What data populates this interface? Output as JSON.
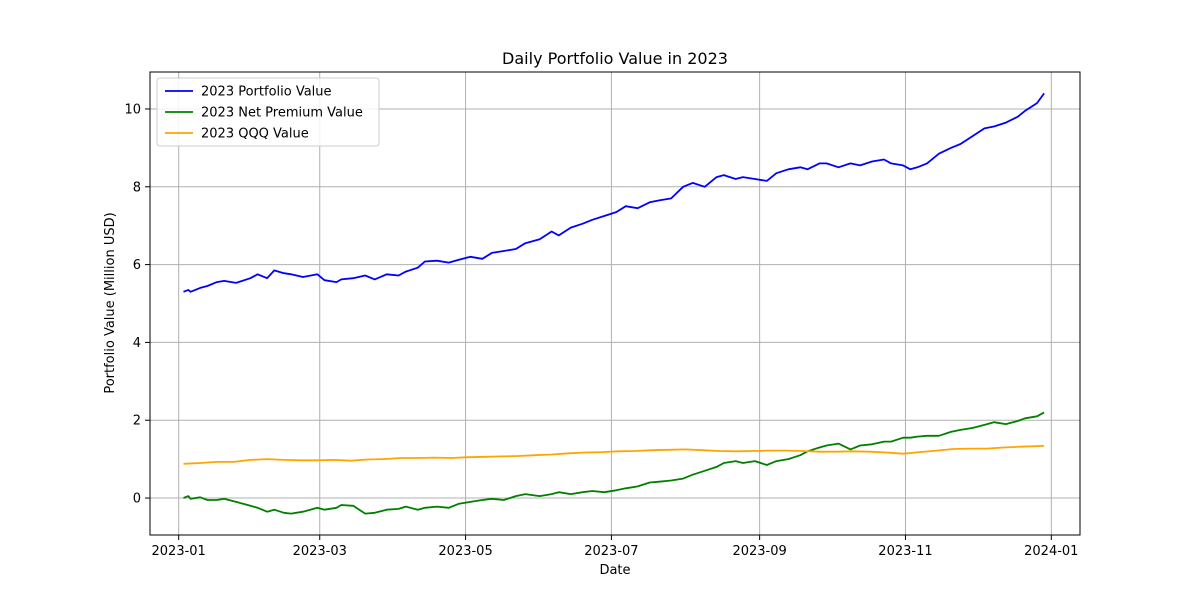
{
  "chart_data": {
    "type": "line",
    "title": "Daily Portfolio Value in 2023",
    "xlabel": "Date",
    "ylabel": "Portfolio Value (Million USD)",
    "xlim": [
      "2022-12-20",
      "2024-01-13"
    ],
    "ylim": [
      -0.95,
      10.95
    ],
    "x_ticks": [
      "2023-01-01",
      "2023-03-01",
      "2023-05-01",
      "2023-07-01",
      "2023-09-01",
      "2023-11-01",
      "2024-01-01"
    ],
    "x_tick_labels": [
      "2023-01",
      "2023-03",
      "2023-05",
      "2023-07",
      "2023-09",
      "2023-11",
      "2024-01"
    ],
    "y_ticks": [
      0,
      2,
      4,
      6,
      8,
      10
    ],
    "y_tick_labels": [
      "0",
      "2",
      "4",
      "6",
      "8",
      "10"
    ],
    "grid": true,
    "legend_position": "top-left",
    "series": [
      {
        "name": "2023 Portfolio Value",
        "color": "#0000ff",
        "points": [
          [
            "2023-01-03",
            5.3
          ],
          [
            "2023-01-05",
            5.35
          ],
          [
            "2023-01-06",
            5.3
          ],
          [
            "2023-01-10",
            5.4
          ],
          [
            "2023-01-13",
            5.45
          ],
          [
            "2023-01-17",
            5.55
          ],
          [
            "2023-01-20",
            5.58
          ],
          [
            "2023-01-25",
            5.53
          ],
          [
            "2023-01-31",
            5.65
          ],
          [
            "2023-02-03",
            5.75
          ],
          [
            "2023-02-07",
            5.65
          ],
          [
            "2023-02-10",
            5.85
          ],
          [
            "2023-02-14",
            5.78
          ],
          [
            "2023-02-17",
            5.75
          ],
          [
            "2023-02-22",
            5.68
          ],
          [
            "2023-02-28",
            5.75
          ],
          [
            "2023-03-03",
            5.6
          ],
          [
            "2023-03-08",
            5.55
          ],
          [
            "2023-03-10",
            5.62
          ],
          [
            "2023-03-15",
            5.65
          ],
          [
            "2023-03-20",
            5.72
          ],
          [
            "2023-03-24",
            5.62
          ],
          [
            "2023-03-29",
            5.75
          ],
          [
            "2023-04-03",
            5.72
          ],
          [
            "2023-04-06",
            5.82
          ],
          [
            "2023-04-11",
            5.92
          ],
          [
            "2023-04-14",
            6.08
          ],
          [
            "2023-04-19",
            6.1
          ],
          [
            "2023-04-24",
            6.05
          ],
          [
            "2023-04-28",
            6.12
          ],
          [
            "2023-05-03",
            6.2
          ],
          [
            "2023-05-08",
            6.15
          ],
          [
            "2023-05-12",
            6.3
          ],
          [
            "2023-05-17",
            6.35
          ],
          [
            "2023-05-22",
            6.4
          ],
          [
            "2023-05-26",
            6.55
          ],
          [
            "2023-06-01",
            6.65
          ],
          [
            "2023-06-06",
            6.85
          ],
          [
            "2023-06-09",
            6.75
          ],
          [
            "2023-06-14",
            6.95
          ],
          [
            "2023-06-19",
            7.05
          ],
          [
            "2023-06-23",
            7.15
          ],
          [
            "2023-06-28",
            7.25
          ],
          [
            "2023-07-03",
            7.35
          ],
          [
            "2023-07-07",
            7.5
          ],
          [
            "2023-07-12",
            7.45
          ],
          [
            "2023-07-17",
            7.6
          ],
          [
            "2023-07-21",
            7.65
          ],
          [
            "2023-07-26",
            7.7
          ],
          [
            "2023-07-31",
            8.0
          ],
          [
            "2023-08-04",
            8.1
          ],
          [
            "2023-08-09",
            8.0
          ],
          [
            "2023-08-14",
            8.25
          ],
          [
            "2023-08-17",
            8.3
          ],
          [
            "2023-08-22",
            8.2
          ],
          [
            "2023-08-25",
            8.25
          ],
          [
            "2023-08-30",
            8.2
          ],
          [
            "2023-09-04",
            8.15
          ],
          [
            "2023-09-08",
            8.35
          ],
          [
            "2023-09-13",
            8.45
          ],
          [
            "2023-09-18",
            8.5
          ],
          [
            "2023-09-21",
            8.45
          ],
          [
            "2023-09-26",
            8.6
          ],
          [
            "2023-09-29",
            8.6
          ],
          [
            "2023-10-04",
            8.5
          ],
          [
            "2023-10-09",
            8.6
          ],
          [
            "2023-10-13",
            8.55
          ],
          [
            "2023-10-18",
            8.65
          ],
          [
            "2023-10-23",
            8.7
          ],
          [
            "2023-10-26",
            8.6
          ],
          [
            "2023-10-31",
            8.55
          ],
          [
            "2023-11-03",
            8.45
          ],
          [
            "2023-11-06",
            8.5
          ],
          [
            "2023-11-10",
            8.6
          ],
          [
            "2023-11-15",
            8.85
          ],
          [
            "2023-11-20",
            9.0
          ],
          [
            "2023-11-24",
            9.1
          ],
          [
            "2023-11-29",
            9.3
          ],
          [
            "2023-12-04",
            9.5
          ],
          [
            "2023-12-08",
            9.55
          ],
          [
            "2023-12-13",
            9.65
          ],
          [
            "2023-12-18",
            9.8
          ],
          [
            "2023-12-21",
            9.95
          ],
          [
            "2023-12-26",
            10.15
          ],
          [
            "2023-12-29",
            10.4
          ]
        ]
      },
      {
        "name": "2023 Net Premium Value",
        "color": "#008000",
        "points": [
          [
            "2023-01-03",
            0.0
          ],
          [
            "2023-01-05",
            0.05
          ],
          [
            "2023-01-06",
            -0.02
          ],
          [
            "2023-01-10",
            0.02
          ],
          [
            "2023-01-13",
            -0.05
          ],
          [
            "2023-01-17",
            -0.05
          ],
          [
            "2023-01-20",
            -0.02
          ],
          [
            "2023-01-25",
            -0.1
          ],
          [
            "2023-01-31",
            -0.2
          ],
          [
            "2023-02-03",
            -0.25
          ],
          [
            "2023-02-07",
            -0.35
          ],
          [
            "2023-02-10",
            -0.3
          ],
          [
            "2023-02-14",
            -0.38
          ],
          [
            "2023-02-17",
            -0.4
          ],
          [
            "2023-02-22",
            -0.35
          ],
          [
            "2023-02-28",
            -0.25
          ],
          [
            "2023-03-03",
            -0.3
          ],
          [
            "2023-03-08",
            -0.25
          ],
          [
            "2023-03-10",
            -0.18
          ],
          [
            "2023-03-15",
            -0.2
          ],
          [
            "2023-03-20",
            -0.4
          ],
          [
            "2023-03-24",
            -0.38
          ],
          [
            "2023-03-29",
            -0.3
          ],
          [
            "2023-04-03",
            -0.28
          ],
          [
            "2023-04-06",
            -0.22
          ],
          [
            "2023-04-11",
            -0.3
          ],
          [
            "2023-04-14",
            -0.25
          ],
          [
            "2023-04-19",
            -0.22
          ],
          [
            "2023-04-24",
            -0.25
          ],
          [
            "2023-04-28",
            -0.15
          ],
          [
            "2023-05-03",
            -0.1
          ],
          [
            "2023-05-08",
            -0.05
          ],
          [
            "2023-05-12",
            -0.02
          ],
          [
            "2023-05-17",
            -0.05
          ],
          [
            "2023-05-22",
            0.05
          ],
          [
            "2023-05-26",
            0.1
          ],
          [
            "2023-06-01",
            0.05
          ],
          [
            "2023-06-06",
            0.1
          ],
          [
            "2023-06-09",
            0.15
          ],
          [
            "2023-06-14",
            0.1
          ],
          [
            "2023-06-19",
            0.15
          ],
          [
            "2023-06-23",
            0.18
          ],
          [
            "2023-06-28",
            0.15
          ],
          [
            "2023-07-03",
            0.2
          ],
          [
            "2023-07-07",
            0.25
          ],
          [
            "2023-07-12",
            0.3
          ],
          [
            "2023-07-17",
            0.4
          ],
          [
            "2023-07-21",
            0.42
          ],
          [
            "2023-07-26",
            0.45
          ],
          [
            "2023-07-31",
            0.5
          ],
          [
            "2023-08-04",
            0.6
          ],
          [
            "2023-08-09",
            0.7
          ],
          [
            "2023-08-14",
            0.8
          ],
          [
            "2023-08-17",
            0.9
          ],
          [
            "2023-08-22",
            0.95
          ],
          [
            "2023-08-25",
            0.9
          ],
          [
            "2023-08-30",
            0.95
          ],
          [
            "2023-09-04",
            0.85
          ],
          [
            "2023-09-08",
            0.95
          ],
          [
            "2023-09-13",
            1.0
          ],
          [
            "2023-09-18",
            1.1
          ],
          [
            "2023-09-21",
            1.2
          ],
          [
            "2023-09-26",
            1.3
          ],
          [
            "2023-09-29",
            1.35
          ],
          [
            "2023-10-04",
            1.4
          ],
          [
            "2023-10-09",
            1.25
          ],
          [
            "2023-10-13",
            1.35
          ],
          [
            "2023-10-18",
            1.38
          ],
          [
            "2023-10-23",
            1.45
          ],
          [
            "2023-10-26",
            1.45
          ],
          [
            "2023-10-31",
            1.55
          ],
          [
            "2023-11-03",
            1.55
          ],
          [
            "2023-11-06",
            1.58
          ],
          [
            "2023-11-10",
            1.6
          ],
          [
            "2023-11-15",
            1.6
          ],
          [
            "2023-11-20",
            1.7
          ],
          [
            "2023-11-24",
            1.75
          ],
          [
            "2023-11-29",
            1.8
          ],
          [
            "2023-12-04",
            1.88
          ],
          [
            "2023-12-08",
            1.95
          ],
          [
            "2023-12-13",
            1.9
          ],
          [
            "2023-12-18",
            1.98
          ],
          [
            "2023-12-21",
            2.05
          ],
          [
            "2023-12-26",
            2.1
          ],
          [
            "2023-12-29",
            2.2
          ]
        ]
      },
      {
        "name": "2023 QQQ Value",
        "color": "#ffa500",
        "points": [
          [
            "2023-01-03",
            0.88
          ],
          [
            "2023-01-10",
            0.9
          ],
          [
            "2023-01-17",
            0.93
          ],
          [
            "2023-01-24",
            0.93
          ],
          [
            "2023-01-31",
            0.98
          ],
          [
            "2023-02-07",
            1.0
          ],
          [
            "2023-02-14",
            0.98
          ],
          [
            "2023-02-21",
            0.97
          ],
          [
            "2023-02-28",
            0.97
          ],
          [
            "2023-03-07",
            0.98
          ],
          [
            "2023-03-14",
            0.96
          ],
          [
            "2023-03-21",
            0.99
          ],
          [
            "2023-03-28",
            1.0
          ],
          [
            "2023-04-04",
            1.03
          ],
          [
            "2023-04-11",
            1.03
          ],
          [
            "2023-04-18",
            1.04
          ],
          [
            "2023-04-25",
            1.03
          ],
          [
            "2023-05-02",
            1.05
          ],
          [
            "2023-05-09",
            1.06
          ],
          [
            "2023-05-16",
            1.07
          ],
          [
            "2023-05-23",
            1.08
          ],
          [
            "2023-05-30",
            1.1
          ],
          [
            "2023-06-06",
            1.12
          ],
          [
            "2023-06-13",
            1.15
          ],
          [
            "2023-06-20",
            1.17
          ],
          [
            "2023-06-27",
            1.18
          ],
          [
            "2023-07-04",
            1.2
          ],
          [
            "2023-07-11",
            1.21
          ],
          [
            "2023-07-18",
            1.23
          ],
          [
            "2023-07-25",
            1.24
          ],
          [
            "2023-08-01",
            1.25
          ],
          [
            "2023-08-08",
            1.23
          ],
          [
            "2023-08-15",
            1.21
          ],
          [
            "2023-08-22",
            1.2
          ],
          [
            "2023-08-29",
            1.21
          ],
          [
            "2023-09-05",
            1.22
          ],
          [
            "2023-09-12",
            1.22
          ],
          [
            "2023-09-19",
            1.21
          ],
          [
            "2023-09-26",
            1.19
          ],
          [
            "2023-10-03",
            1.19
          ],
          [
            "2023-10-10",
            1.2
          ],
          [
            "2023-10-17",
            1.19
          ],
          [
            "2023-10-24",
            1.17
          ],
          [
            "2023-10-31",
            1.14
          ],
          [
            "2023-11-07",
            1.18
          ],
          [
            "2023-11-14",
            1.22
          ],
          [
            "2023-11-21",
            1.26
          ],
          [
            "2023-11-28",
            1.27
          ],
          [
            "2023-12-05",
            1.27
          ],
          [
            "2023-12-12",
            1.3
          ],
          [
            "2023-12-19",
            1.32
          ],
          [
            "2023-12-29",
            1.34
          ]
        ]
      }
    ]
  }
}
